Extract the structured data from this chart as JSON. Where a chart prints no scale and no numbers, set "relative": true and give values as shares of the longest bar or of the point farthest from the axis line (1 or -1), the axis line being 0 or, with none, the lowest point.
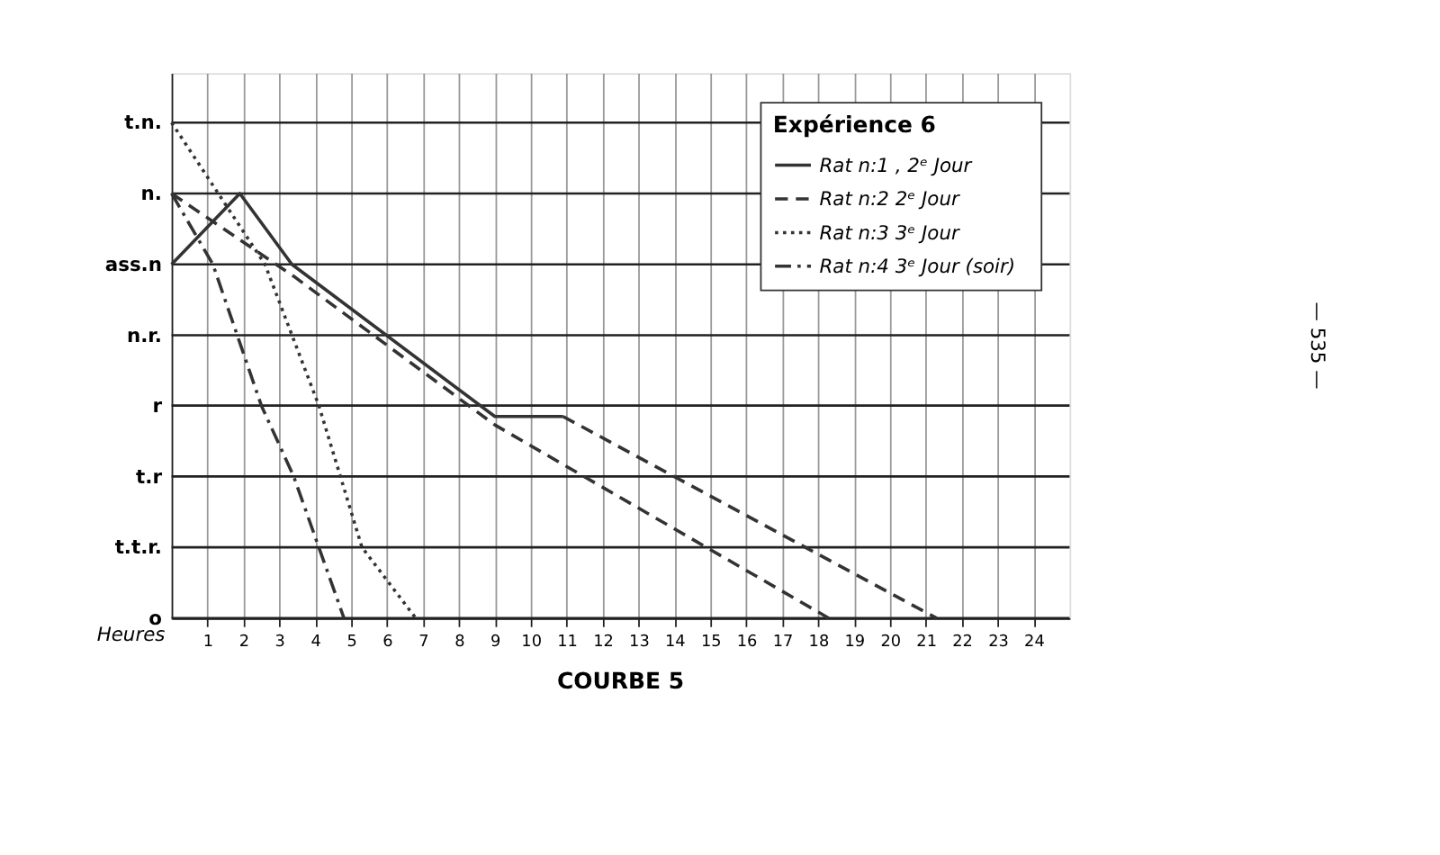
{
  "chart_data": {
    "type": "line",
    "title": "COURBE 5",
    "xlabel": "Heures",
    "legend_title": "Expérience 6",
    "relative": true,
    "xlim": [
      0,
      25
    ],
    "xticks": [
      1,
      2,
      3,
      4,
      5,
      6,
      7,
      8,
      9,
      10,
      11,
      12,
      13,
      14,
      15,
      16,
      17,
      18,
      19,
      20,
      21,
      22,
      23,
      24
    ],
    "grid": "x",
    "legend": "top right",
    "annotations": [
      "— 535 —"
    ],
    "ref_lines": [
      {
        "axis": "y",
        "value": 0,
        "label": "o"
      },
      {
        "axis": "y",
        "value": 0.143,
        "label": "t.t.r."
      },
      {
        "axis": "y",
        "value": 0.286,
        "label": "t.r"
      },
      {
        "axis": "y",
        "value": 0.429,
        "label": "r"
      },
      {
        "axis": "y",
        "value": 0.571,
        "label": "n.r."
      },
      {
        "axis": "y",
        "value": 0.714,
        "label": "ass.n"
      },
      {
        "axis": "y",
        "value": 0.857,
        "label": "n."
      },
      {
        "axis": "y",
        "value": 1,
        "label": "t.n."
      }
    ],
    "series": [
      {
        "name": "Rat n:1 , 2ᵉ Jour",
        "color": "#333333",
        "line_style": "solid",
        "x": [
          0,
          1.9,
          3.35,
          9.0,
          10.9
        ],
        "values": [
          0.714,
          0.857,
          0.714,
          0.407,
          0.407
        ]
      },
      {
        "color": "#333333",
        "line_style": "dashed",
        "x": [
          10.9,
          21.3
        ],
        "values": [
          0.407,
          0
        ]
      },
      {
        "name": "Rat n:2   2ᵉ Jour",
        "color": "#333333",
        "line_style": "dashed",
        "x": [
          0,
          3.4,
          9.0,
          18.3
        ],
        "values": [
          0.857,
          0.69,
          0.39,
          0
        ]
      },
      {
        "name": "Rat n:3   3ᵉ Jour",
        "color": "#333333",
        "line_style": "dotted",
        "x": [
          0,
          2.6,
          4.1,
          5.3,
          6.8
        ],
        "values": [
          1,
          0.714,
          0.429,
          0.143,
          0
        ]
      },
      {
        "name": "Rat n:4   3ᵉ Jour (soir)",
        "color": "#333333",
        "line_style": "dashdot",
        "x": [
          0,
          1.15,
          2.5,
          3.4,
          4.8
        ],
        "values": [
          0.857,
          0.714,
          0.429,
          0.286,
          0
        ]
      }
    ]
  }
}
